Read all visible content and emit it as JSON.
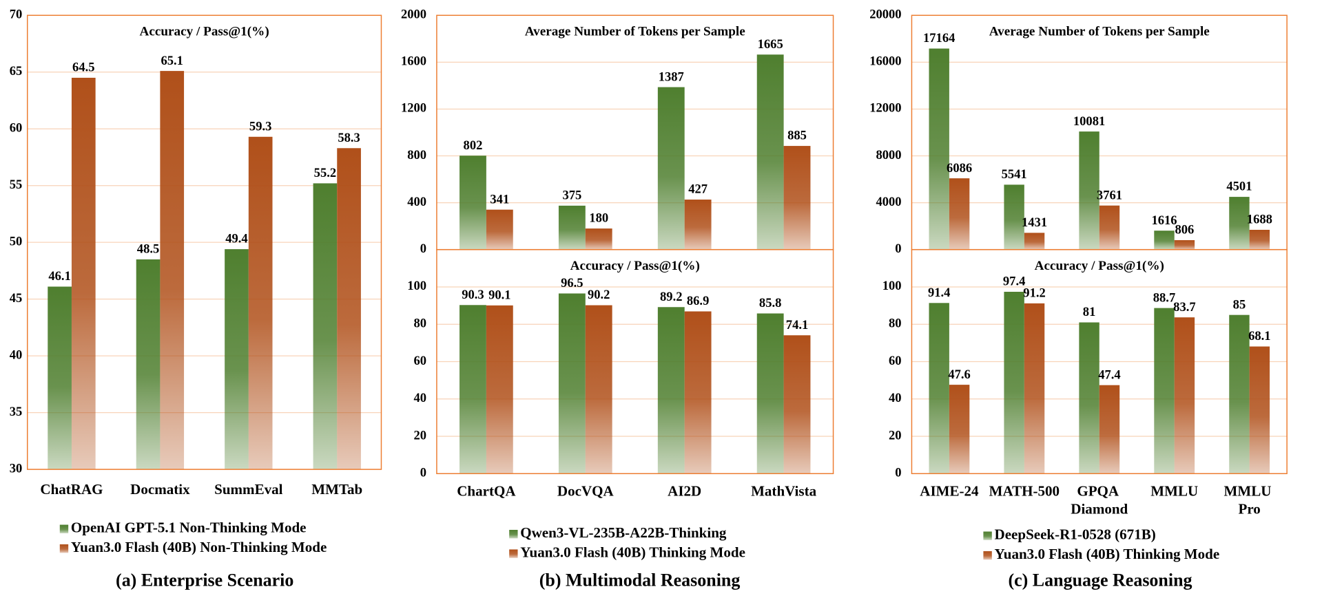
{
  "chart_data": [
    {
      "type": "bar",
      "title": "Accuracy / Pass@1(%)",
      "caption": "(a) Enterprise Scenario",
      "categories": [
        "ChatRAG",
        "Docmatix",
        "SummEval",
        "MMTab"
      ],
      "series": [
        {
          "name": "OpenAI GPT-5.1 Non-Thinking Mode",
          "color": "#4f7f2f",
          "values": [
            46.1,
            48.5,
            49.4,
            55.2
          ]
        },
        {
          "name": "Yuan3.0 Flash (40B) Non-Thinking Mode",
          "color": "#b0501a",
          "values": [
            64.5,
            65.1,
            59.3,
            58.3
          ]
        }
      ],
      "ylim": [
        30,
        70
      ],
      "yticks": [
        30,
        35,
        40,
        45,
        50,
        55,
        60,
        65,
        70
      ],
      "grid": true
    },
    {
      "type": "bar",
      "title": "Average Number of Tokens per Sample",
      "series": [
        {
          "color": "#4f7f2f",
          "values": [
            802,
            375,
            1387,
            1665
          ]
        },
        {
          "color": "#b0501a",
          "values": [
            341,
            180,
            427,
            885
          ]
        }
      ],
      "ylim": [
        0,
        2000
      ],
      "yticks": [
        0,
        400,
        800,
        1200,
        1600,
        2000
      ],
      "grid": true
    },
    {
      "type": "bar",
      "title": "Accuracy / Pass@1(%)",
      "caption": "(b) Multimodal Reasoning",
      "categories": [
        "ChartQA",
        "DocVQA",
        "AI2D",
        "MathVista"
      ],
      "series": [
        {
          "name": "Qwen3-VL-235B-A22B-Thinking",
          "color": "#4f7f2f",
          "values": [
            90.3,
            96.5,
            89.2,
            85.8
          ]
        },
        {
          "name": "Yuan3.0 Flash (40B) Thinking Mode",
          "color": "#b0501a",
          "values": [
            90.1,
            90.2,
            86.9,
            74.1
          ]
        }
      ],
      "ylim": [
        0,
        120
      ],
      "yticks": [
        0,
        20,
        40,
        60,
        80,
        100
      ],
      "grid": true
    },
    {
      "type": "bar",
      "title": "Average Number of Tokens per Sample",
      "series": [
        {
          "color": "#4f7f2f",
          "values": [
            17164,
            5541,
            10081,
            1616,
            4501
          ]
        },
        {
          "color": "#b0501a",
          "values": [
            6086,
            1431,
            3761,
            806,
            1688
          ]
        }
      ],
      "ylim": [
        0,
        20000
      ],
      "yticks": [
        0,
        4000,
        8000,
        12000,
        16000,
        20000
      ],
      "grid": true
    },
    {
      "type": "bar",
      "title": "Accuracy / Pass@1(%)",
      "caption": "(c) Language Reasoning",
      "categories": [
        "AIME-24",
        "MATH-500",
        "GPQA Diamond",
        "MMLU",
        "MMLU Pro"
      ],
      "series": [
        {
          "name": "DeepSeek-R1-0528 (671B)",
          "color": "#4f7f2f",
          "values": [
            91.4,
            97.4,
            81,
            88.7,
            85
          ]
        },
        {
          "name": "Yuan3.0 Flash (40B) Thinking Mode",
          "color": "#b0501a",
          "values": [
            47.6,
            91.2,
            47.4,
            83.7,
            68.1
          ]
        }
      ],
      "ylim": [
        0,
        120
      ],
      "yticks": [
        0,
        20,
        40,
        60,
        80,
        100
      ],
      "grid": true
    }
  ]
}
